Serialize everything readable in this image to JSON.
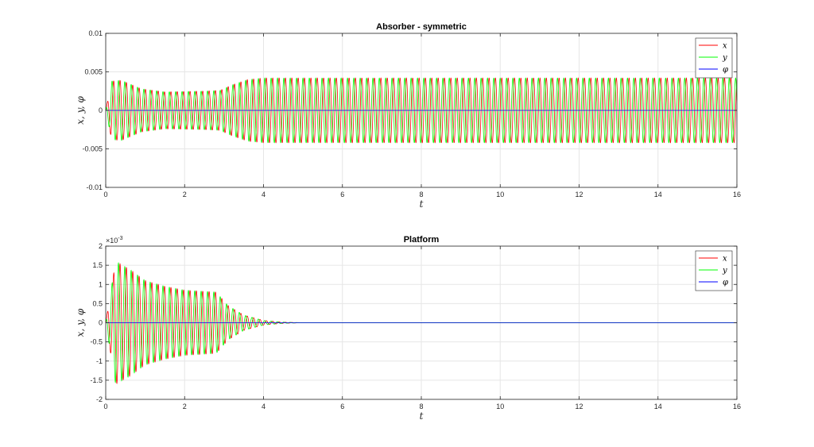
{
  "chart_data": [
    {
      "type": "line",
      "title": "Absorber - symmetric",
      "xlabel": "t",
      "ylabel": "x, y, φ",
      "xlim": [
        0,
        16
      ],
      "ylim": [
        -0.01,
        0.01
      ],
      "xticks": [
        "0",
        "2",
        "4",
        "6",
        "8",
        "10",
        "12",
        "14",
        "16"
      ],
      "yticks": [
        "-0.01",
        "-0.005",
        "0",
        "0.005",
        "0.01"
      ],
      "ytick_values": [
        -0.01,
        -0.005,
        0,
        0.005,
        0.01
      ],
      "exponent_label": "",
      "grid": true,
      "legend": "top-right",
      "frequency_hz": 6.2,
      "series": [
        {
          "name": "x",
          "color": "#ff0000",
          "phase_deg": 0,
          "envelope": {
            "t": [
              0,
              0.15,
              0.4,
              0.9,
              1.5,
              2.5,
              2.9,
              3.2,
              3.6,
              4.0,
              16
            ],
            "amp": [
              0,
              0.0038,
              0.0039,
              0.0028,
              0.0024,
              0.0025,
              0.0026,
              0.0033,
              0.004,
              0.0042,
              0.0042
            ]
          }
        },
        {
          "name": "y",
          "color": "#00ff00",
          "phase_deg": 90,
          "envelope": {
            "t": [
              0,
              0.15,
              0.4,
              0.9,
              1.5,
              2.5,
              2.9,
              3.2,
              3.6,
              4.0,
              16
            ],
            "amp": [
              0,
              0.0038,
              0.0039,
              0.0028,
              0.0024,
              0.0025,
              0.0026,
              0.0033,
              0.004,
              0.0042,
              0.0042
            ]
          }
        },
        {
          "name": "φ",
          "color": "#0000ff",
          "constant": 0
        }
      ]
    },
    {
      "type": "line",
      "title": "Platform",
      "xlabel": "t",
      "ylabel": "x, y, φ",
      "xlim": [
        0,
        16
      ],
      "ylim": [
        -2,
        2
      ],
      "xticks": [
        "0",
        "2",
        "4",
        "6",
        "8",
        "10",
        "12",
        "14",
        "16"
      ],
      "yticks": [
        "-2",
        "-1.5",
        "-1",
        "-0.5",
        "0",
        "0.5",
        "1",
        "1.5",
        "2"
      ],
      "ytick_values": [
        -2,
        -1.5,
        -1,
        -0.5,
        0,
        0.5,
        1,
        1.5,
        2
      ],
      "exponent_label": "×10",
      "exponent_power": "-3",
      "grid": true,
      "legend": "top-right",
      "frequency_hz": 6.2,
      "series": [
        {
          "name": "x",
          "color": "#ff0000",
          "phase_deg": 0,
          "envelope": {
            "t": [
              0,
              0.25,
              0.6,
              1.0,
              1.5,
              2.0,
              2.8,
              3.1,
              3.5,
              4.0,
              4.5,
              5.0,
              16
            ],
            "amp": [
              0,
              1.6,
              1.4,
              1.1,
              0.95,
              0.85,
              0.8,
              0.45,
              0.2,
              0.06,
              0.015,
              0,
              0
            ]
          }
        },
        {
          "name": "y",
          "color": "#00ff00",
          "phase_deg": 90,
          "envelope": {
            "t": [
              0,
              0.25,
              0.6,
              1.0,
              1.5,
              2.0,
              2.8,
              3.1,
              3.5,
              4.0,
              4.5,
              5.0,
              16
            ],
            "amp": [
              0,
              1.6,
              1.4,
              1.1,
              0.95,
              0.85,
              0.8,
              0.45,
              0.2,
              0.06,
              0.015,
              0,
              0
            ]
          }
        },
        {
          "name": "φ",
          "color": "#0000ff",
          "constant": 0
        }
      ]
    }
  ]
}
